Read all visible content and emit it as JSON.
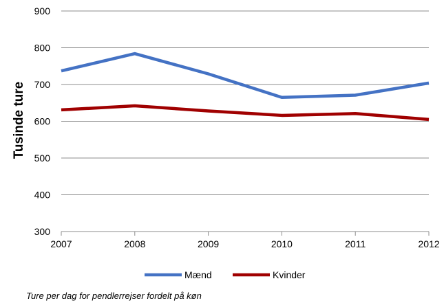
{
  "chart_data": {
    "type": "line",
    "x": [
      "2007",
      "2008",
      "2009",
      "2010",
      "2011",
      "2012"
    ],
    "series": [
      {
        "name": "Mænd",
        "color": "#4472C4",
        "values": [
          737,
          784,
          729,
          665,
          671,
          704
        ]
      },
      {
        "name": "Kvinder",
        "color": "#A00000",
        "values": [
          631,
          642,
          628,
          616,
          621,
          605
        ]
      }
    ],
    "ylabel": "Tusinde ture",
    "xlabel": "",
    "title": "",
    "ylim": [
      300,
      900
    ],
    "yticks": [
      300,
      400,
      500,
      600,
      700,
      800,
      900
    ],
    "grid": true,
    "legend_position": "bottom"
  },
  "caption": "Ture per dag for pendlerrejser fordelt på køn"
}
